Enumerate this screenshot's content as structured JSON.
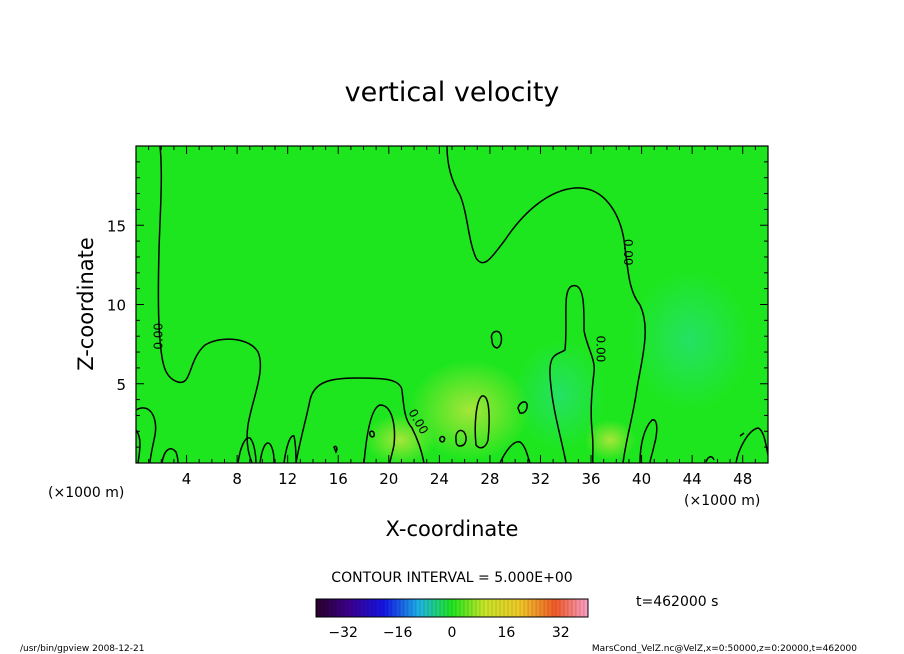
{
  "chart_data": {
    "type": "heatmap",
    "title": "vertical velocity",
    "xlabel": "X-coordinate",
    "ylabel": "Z-coordinate",
    "x_unit_left": "(×1000 m)",
    "x_unit_right": "(×1000 m)",
    "xlim": [
      0,
      50
    ],
    "ylim": [
      0,
      20
    ],
    "x_ticks": [
      4,
      8,
      12,
      16,
      20,
      24,
      28,
      32,
      36,
      40,
      44,
      48
    ],
    "y_ticks": [
      5,
      10,
      15
    ],
    "contour_labels": [
      {
        "text": "0.00",
        "x": 1.8,
        "z": 8.0,
        "angle": -90
      },
      {
        "text": "0.00",
        "x": 38.9,
        "z": 13.3,
        "angle": 90
      },
      {
        "text": "0.00",
        "x": 36.7,
        "z": 7.2,
        "angle": 90
      },
      {
        "text": "0.00",
        "x": 22.3,
        "z": 2.6,
        "angle": 60
      }
    ],
    "contour_interval_label": "CONTOUR INTERVAL = 5.000E+00",
    "time_label": "t=462000 s",
    "colorbar": {
      "range": [
        -40,
        40
      ],
      "ticks": [
        -32,
        -16,
        0,
        16,
        32
      ],
      "tick_labels": [
        "−32",
        "−16",
        "0",
        "16",
        "32"
      ]
    },
    "colors": {
      "background_field": "#1ee61e",
      "contour": "#000000"
    }
  },
  "footer": {
    "left": "/usr/bin/gpview   2008-12-21",
    "right": "MarsCond_VelZ.nc@VelZ,x=0:50000,z=0:20000,t=462000"
  }
}
